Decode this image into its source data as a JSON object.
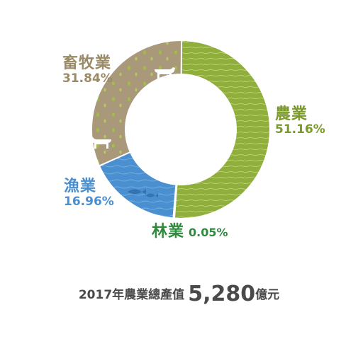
{
  "chart_data": {
    "type": "pie",
    "title": "",
    "categories": [
      "農業",
      "林業",
      "漁業",
      "畜牧業"
    ],
    "values": [
      51.16,
      0.05,
      16.96,
      31.84
    ],
    "labels": [
      "51.16%",
      "0.05%",
      "16.96%",
      "31.84%"
    ],
    "colors": [
      "#8fae3c",
      "#2f8a3c",
      "#4a8fcf",
      "#a9987a"
    ],
    "label_colors": [
      "#7a9a2a",
      "#2f8a3c",
      "#4a8fcf",
      "#9a8a66"
    ],
    "donut": true
  },
  "footer": {
    "text": "2017年農業總產值",
    "value": "5,280",
    "unit": "億元"
  },
  "icons": [
    "cow-icon",
    "cow-icon",
    "fish-icon"
  ]
}
